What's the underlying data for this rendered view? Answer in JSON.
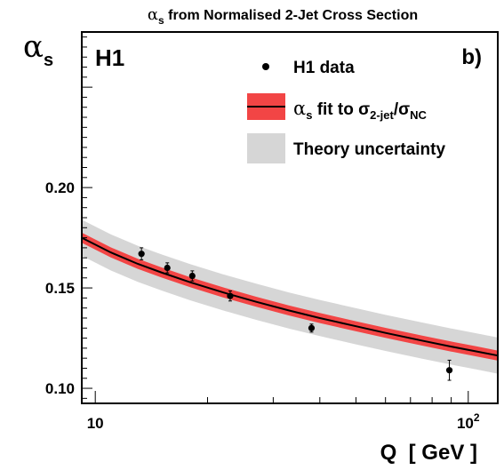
{
  "chart_data": {
    "type": "line",
    "title_greek": "α",
    "title_sub": "s",
    "title_rest": " from Normalised 2-Jet Cross Section",
    "ylabel_greek": "α",
    "ylabel_sub": "s",
    "experiment_label": "H1",
    "panel_label": "b)",
    "xlabel": "Q  [ GeV ]",
    "x_scale": "log",
    "xlim": [
      9.2,
      120
    ],
    "ylim": [
      0.0925,
      0.2775
    ],
    "y_ticks": [
      {
        "value": 0.1,
        "label": "0.10"
      },
      {
        "value": 0.15,
        "label": "0.15"
      },
      {
        "value": 0.2,
        "label": "0.20"
      }
    ],
    "x_ticks": [
      {
        "value": 10,
        "label": "10"
      },
      {
        "value": 100,
        "label": "10",
        "exponent": "2"
      }
    ],
    "legend": {
      "data_label": "H1 data",
      "fit_greek": "α",
      "fit_sub": "s",
      "fit_mid": " fit to σ",
      "fit_sub2": "2-jet",
      "fit_slash": "/σ",
      "fit_sub3": "NC",
      "theory_label": "Theory uncertainty"
    },
    "colors": {
      "fit_line": "#000000",
      "fit_band": "#f24545",
      "theory_band": "#d6d6d6",
      "data": "#000000"
    },
    "fit_curve": {
      "x": [
        9.2,
        11,
        13,
        15,
        18,
        22,
        27,
        33,
        40,
        50,
        60,
        75,
        90,
        105,
        120
      ],
      "y": [
        0.175,
        0.1677,
        0.162,
        0.1578,
        0.1528,
        0.1478,
        0.1431,
        0.1388,
        0.135,
        0.1309,
        0.1276,
        0.1238,
        0.1208,
        0.1184,
        0.1163
      ],
      "fit_band_halfwidth": 0.0025,
      "theory_band_halfwidth": 0.009
    },
    "series": [
      {
        "name": "H1 data",
        "points": [
          {
            "x": 13.3,
            "y": 0.167,
            "err": 0.003
          },
          {
            "x": 15.6,
            "y": 0.16,
            "err": 0.0025
          },
          {
            "x": 18.2,
            "y": 0.156,
            "err": 0.0025
          },
          {
            "x": 23.0,
            "y": 0.146,
            "err": 0.0025
          },
          {
            "x": 38.0,
            "y": 0.13,
            "err": 0.002
          },
          {
            "x": 89.0,
            "y": 0.109,
            "err": 0.005
          }
        ]
      }
    ]
  }
}
